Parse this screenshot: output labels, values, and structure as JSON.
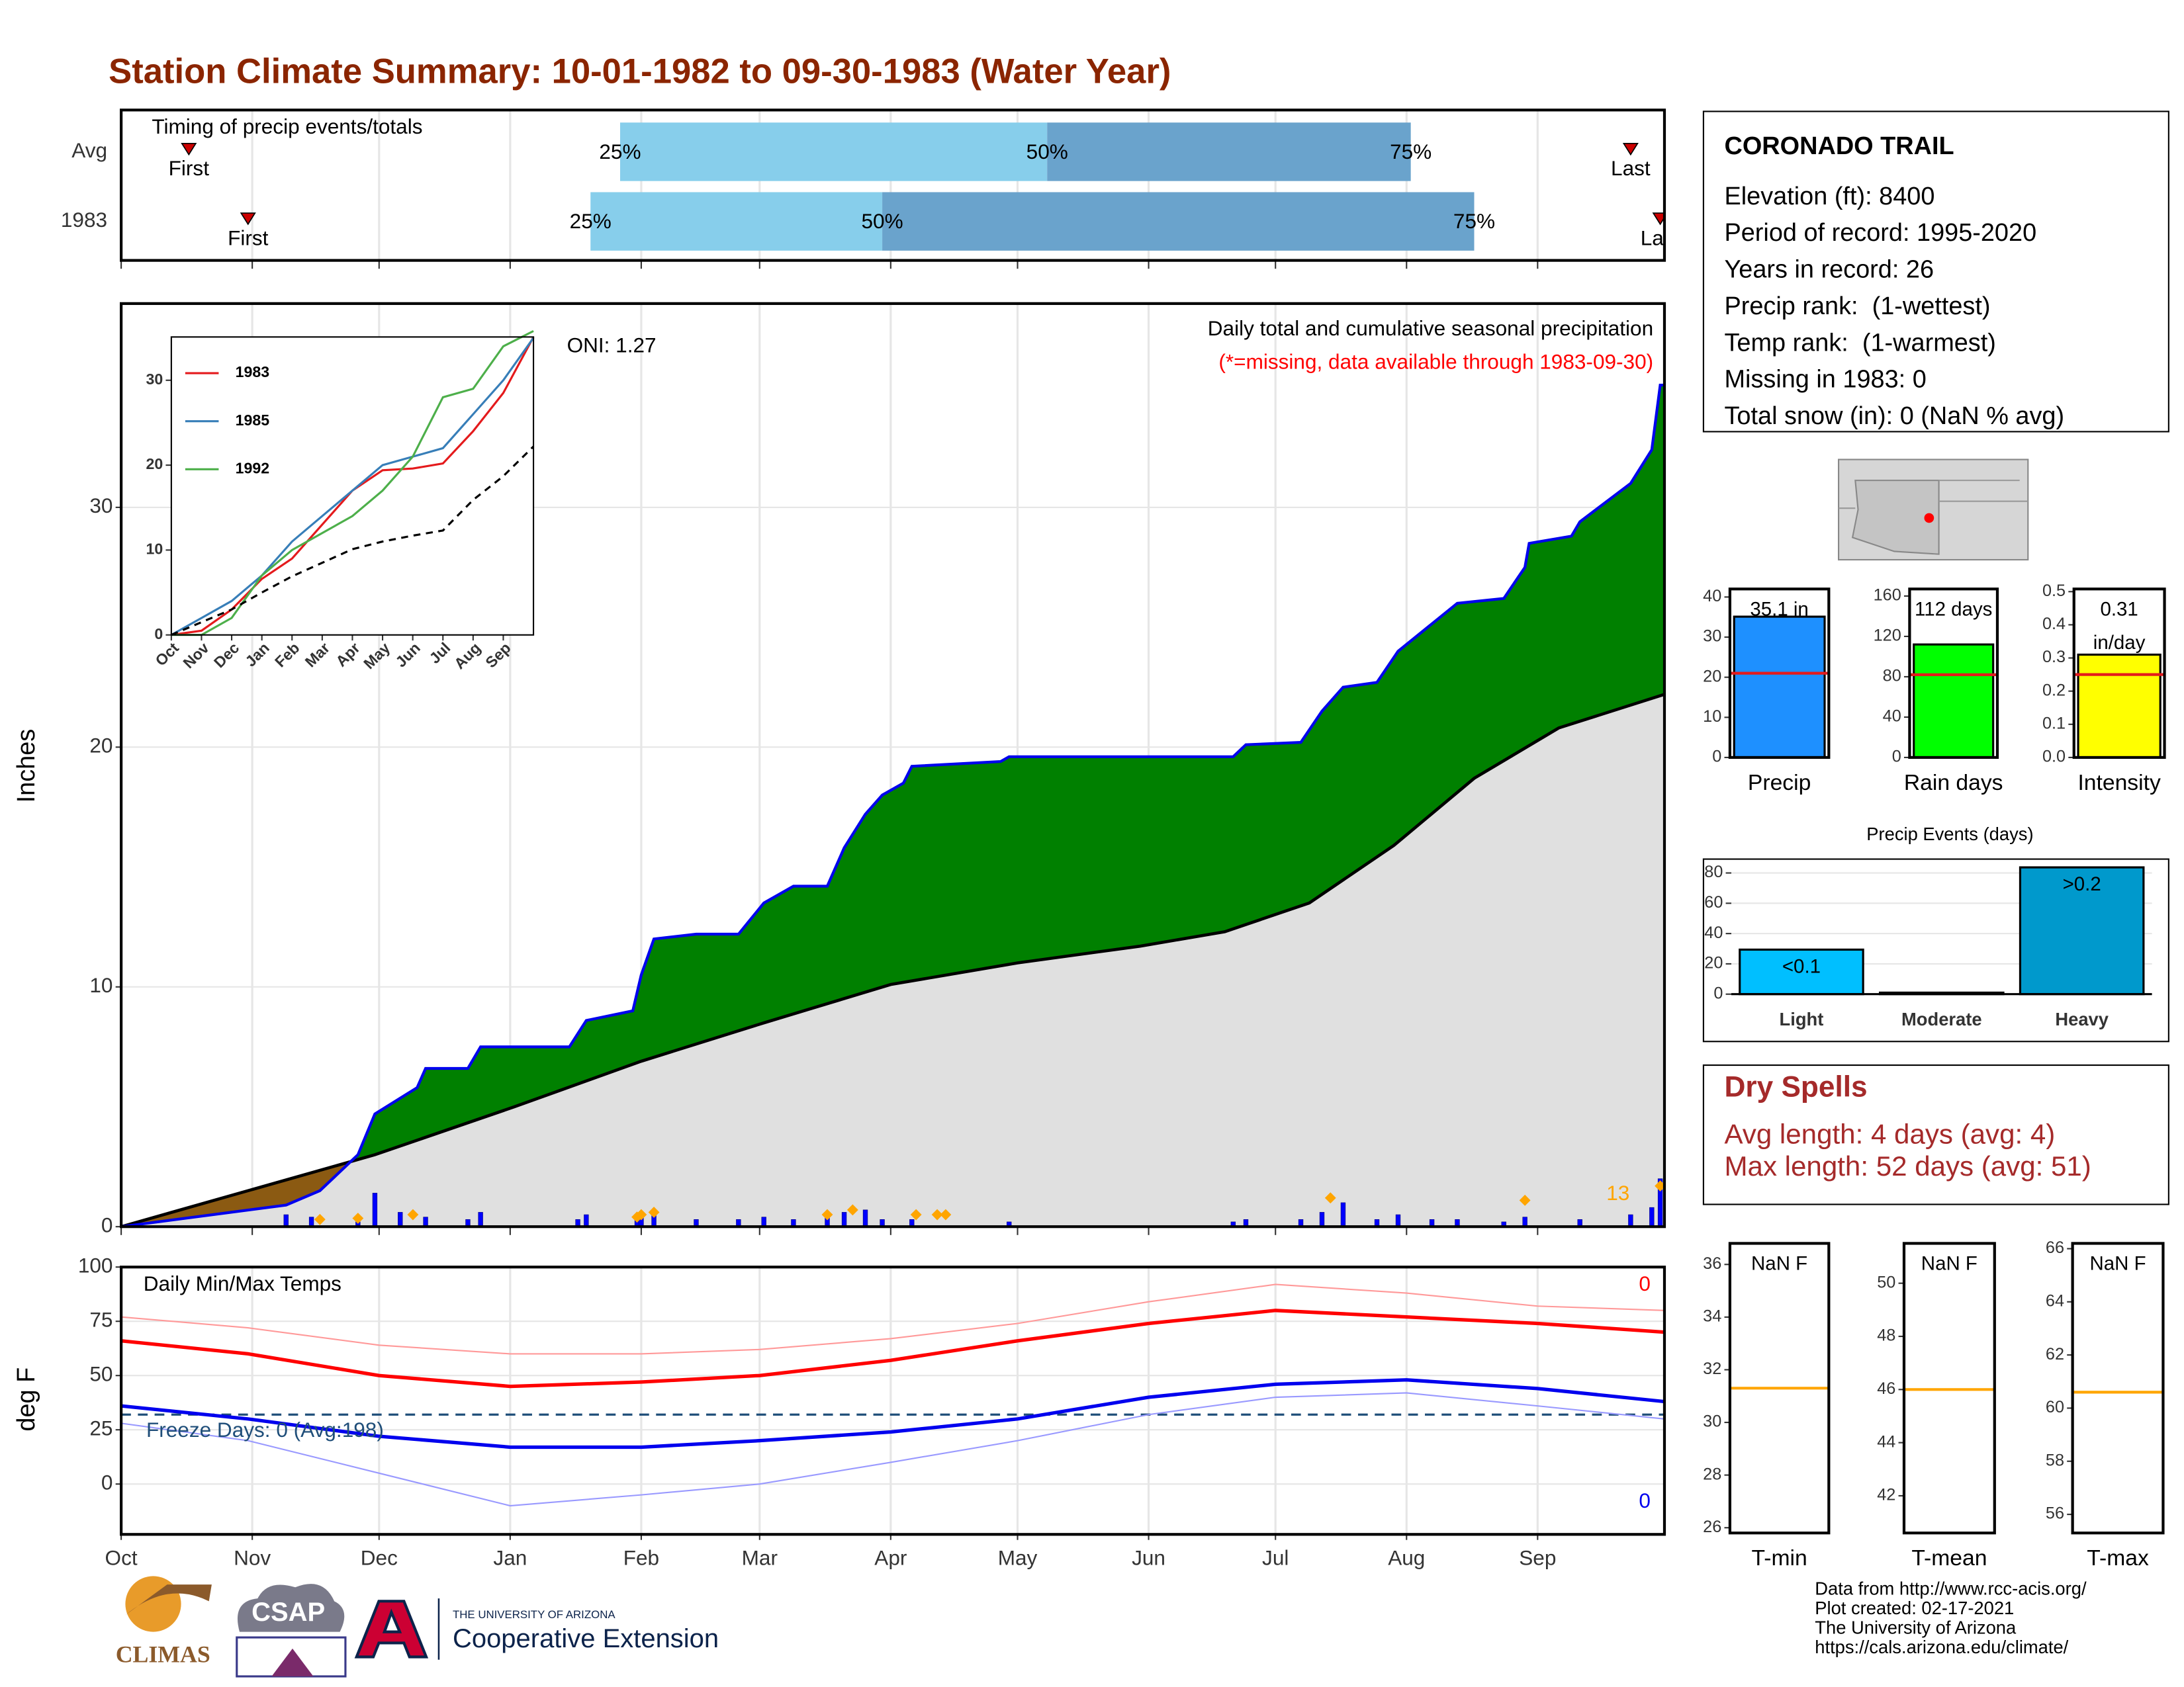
{
  "title": "Station Climate Summary: 10-01-1982 to 09-30-1983 (Water Year)",
  "station": {
    "name": "CORONADO TRAIL",
    "lines": [
      "Elevation (ft): 8400",
      "Period of record: 1995-2020",
      "Years in record: 26",
      "Precip rank:  (1-wettest)",
      "Temp rank:  (1-warmest)",
      "Missing in 1983: 0",
      "Total snow (in): 0 (NaN % avg)"
    ]
  },
  "dry_spells": {
    "title": "Dry Spells",
    "lines": [
      "Avg length: 4 days (avg: 4)",
      "Max length: 52 days (avg: 51)"
    ]
  },
  "logos": {
    "climas": "CLIMAS",
    "csap": "CSAP",
    "university": "THE UNIVERSITY OF ARIZONA",
    "extension": "Cooperative Extension"
  },
  "footer": [
    "Data from http://www.rcc-acis.org/",
    "Plot created: 02-17-2021",
    "The University of Arizona",
    "https://cals.arizona.edu/climate/"
  ],
  "chart_data": [
    {
      "type": "range_bar",
      "title": "Timing of precip events/totals",
      "categories": [
        "Avg",
        "1983"
      ],
      "first": [
        16,
        30
      ],
      "p25": [
        118,
        111
      ],
      "p50": [
        219,
        180
      ],
      "p75": [
        305,
        320
      ],
      "last": [
        357,
        364
      ],
      "labels": {
        "first": "First",
        "last": "Last",
        "p25": "25%",
        "p50": "50%",
        "p75": "75%"
      },
      "colors": [
        "#87ceeb",
        "#6aa3cc"
      ],
      "marker_color": "#cc0000",
      "xlim": [
        0,
        365
      ],
      "xticks": [
        0,
        31,
        61,
        92,
        123,
        151,
        182,
        212,
        243,
        273,
        304,
        335
      ],
      "grid": true
    },
    {
      "type": "area",
      "ylabel": "Inches",
      "oni": "ONI: 1.27",
      "subtitle": "Daily total and cumulative seasonal precipitation",
      "note": "(*=missing, data available through 1983-09-30)",
      "cumulative": {
        "color": "#0000ee",
        "x": [
          0,
          39,
          47,
          56,
          60,
          70,
          72,
          82,
          85,
          106,
          110,
          121,
          123,
          126,
          136,
          146,
          152,
          159,
          167,
          171,
          176,
          180,
          185,
          187,
          208,
          210,
          263,
          266,
          279,
          284,
          289,
          297,
          302,
          316,
          327,
          332,
          333,
          343,
          345,
          357,
          362,
          364,
          365
        ],
        "values": [
          0,
          0.9,
          1.5,
          3.0,
          4.7,
          5.8,
          6.6,
          6.6,
          7.5,
          7.5,
          8.6,
          9.0,
          10.5,
          12.0,
          12.2,
          12.2,
          13.5,
          14.2,
          14.2,
          15.8,
          17.2,
          18.0,
          18.5,
          19.2,
          19.4,
          19.6,
          19.6,
          20.1,
          20.2,
          21.5,
          22.5,
          22.7,
          24.0,
          26.0,
          26.2,
          27.5,
          28.5,
          28.8,
          29.4,
          31.0,
          32.4,
          35.1,
          35.1
        ]
      },
      "average": {
        "color": "#000000",
        "x": [
          0,
          60,
          93,
          123,
          152,
          182,
          212,
          241,
          261,
          281,
          301,
          320,
          340,
          365
        ],
        "values": [
          0,
          3.0,
          5.0,
          6.9,
          8.5,
          10.1,
          11.0,
          11.7,
          12.3,
          13.5,
          15.9,
          18.7,
          20.8,
          22.2
        ]
      },
      "daily": {
        "color": "#0000ff",
        "x": [
          39,
          45,
          56,
          60,
          66,
          72,
          82,
          85,
          108,
          110,
          122,
          123,
          126,
          136,
          146,
          152,
          159,
          167,
          171,
          176,
          180,
          187,
          210,
          263,
          266,
          279,
          284,
          289,
          297,
          302,
          310,
          316,
          327,
          332,
          345,
          357,
          362,
          364
        ],
        "values": [
          0.5,
          0.4,
          0.2,
          1.4,
          0.6,
          0.4,
          0.3,
          0.6,
          0.3,
          0.5,
          0.3,
          0.6,
          0.6,
          0.3,
          0.3,
          0.4,
          0.3,
          0.4,
          0.6,
          0.7,
          0.3,
          0.3,
          0.2,
          0.2,
          0.3,
          0.3,
          0.6,
          1.0,
          0.3,
          0.5,
          0.3,
          0.3,
          0.2,
          0.4,
          0.3,
          0.5,
          0.8,
          2.0
        ]
      },
      "events": {
        "color": "#ffa500",
        "x": [
          47,
          56,
          69,
          122,
          123,
          126,
          167,
          173,
          188,
          193,
          195,
          286,
          332,
          364
        ],
        "values": [
          0.3,
          0.35,
          0.5,
          0.4,
          0.5,
          0.6,
          0.5,
          0.7,
          0.5,
          0.5,
          0.5,
          1.2,
          1.1,
          1.7
        ]
      },
      "event_count": 13,
      "fill_above": "#008000",
      "fill_below": "#8b5a12",
      "fill_base": "#e0e0e0",
      "xlim": [
        0,
        365
      ],
      "xticks": [
        0,
        31,
        61,
        92,
        123,
        151,
        182,
        212,
        243,
        273,
        304,
        335
      ],
      "ylim": [
        0,
        38.5
      ],
      "yticks": [
        0,
        10,
        20,
        30
      ],
      "grid": true
    },
    {
      "type": "line",
      "x": [
        0,
        1,
        2,
        3,
        4,
        5,
        6,
        7,
        8,
        9,
        10,
        11,
        12
      ],
      "xlim": [
        0,
        12
      ],
      "xticks": [
        {
          "value": 0,
          "label": "Oct"
        },
        {
          "value": 1,
          "label": "Nov"
        },
        {
          "value": 2,
          "label": "Dec"
        },
        {
          "value": 3,
          "label": "Jan"
        },
        {
          "value": 4,
          "label": "Feb"
        },
        {
          "value": 5,
          "label": "Mar"
        },
        {
          "value": 6,
          "label": "Apr"
        },
        {
          "value": 7,
          "label": "May"
        },
        {
          "value": 8,
          "label": "Jun"
        },
        {
          "value": 9,
          "label": "Jul"
        },
        {
          "value": 10,
          "label": "Aug"
        },
        {
          "value": 11,
          "label": "Sep"
        }
      ],
      "ylim": [
        0,
        35.1
      ],
      "yticks": [
        0,
        10,
        20,
        30
      ],
      "grid": false,
      "legend": "top-left",
      "series": [
        {
          "name": "1983",
          "color": "#e41a1c",
          "values": [
            0,
            0.5,
            3,
            6.6,
            9,
            13,
            17,
            19.4,
            19.6,
            20.2,
            24,
            28.5,
            35.1
          ]
        },
        {
          "name": "1985",
          "color": "#377eb8",
          "values": [
            0,
            2,
            4,
            7,
            11,
            14,
            17,
            20,
            21,
            22,
            26,
            30,
            35
          ]
        },
        {
          "name": "1992",
          "color": "#4daf4a",
          "values": [
            0,
            0,
            2,
            7,
            10,
            12,
            14,
            17,
            21,
            28,
            29,
            34,
            35.8
          ]
        },
        {
          "color": "#000000",
          "dash": true,
          "values": [
            0,
            1.5,
            3,
            5,
            6.9,
            8.5,
            10.1,
            11,
            11.7,
            12.3,
            15.9,
            18.7,
            22.2
          ]
        }
      ]
    },
    {
      "type": "bar",
      "xlabel": "Precip",
      "values": [
        35.1
      ],
      "value_labels": [
        "35.1 in"
      ],
      "average": 21,
      "average_color": "#e41a1c",
      "color": "#1e90ff",
      "ylim": [
        0,
        42
      ],
      "yticks": [
        0,
        10,
        20,
        30,
        40
      ]
    },
    {
      "type": "bar",
      "xlabel": "Rain days",
      "values": [
        112
      ],
      "value_labels": [
        "112 days"
      ],
      "average": 82,
      "average_color": "#e41a1c",
      "color": "#00ff00",
      "ylim": [
        0,
        167
      ],
      "yticks": [
        0,
        40,
        80,
        120,
        160
      ]
    },
    {
      "type": "bar",
      "xlabel": "Intensity",
      "values": [
        0.31
      ],
      "value_labels": [
        "0.31 in/day"
      ],
      "average": 0.25,
      "average_color": "#e41a1c",
      "color": "#ffff00",
      "ylim": [
        0,
        0.508
      ],
      "yticks": [
        {
          "value": 0,
          "label": "0.0"
        },
        0.1,
        0.2,
        0.3,
        0.4,
        0.5
      ]
    },
    {
      "type": "bar",
      "title": "Precip Events (days)",
      "categories": [
        "Light",
        "Moderate",
        "Heavy"
      ],
      "values": [
        29.4,
        1,
        83.7
      ],
      "thresholds": [
        "<0.1",
        null,
        ">0.2"
      ],
      "colors": [
        "#00bfff",
        "#1e90ff",
        "#0099cc"
      ],
      "ylim": [
        0,
        86.4
      ],
      "yticks": [
        0,
        20,
        40,
        60,
        80
      ],
      "grid": true
    },
    {
      "type": "line",
      "title": "Daily Min/Max Temps",
      "ylabel": "deg F",
      "x": [
        0,
        30,
        61,
        92,
        123,
        151,
        182,
        212,
        243,
        273,
        304,
        335,
        365
      ],
      "xlim": [
        0,
        365
      ],
      "xticks": [
        {
          "value": 0,
          "label": "Oct"
        },
        {
          "value": 31,
          "label": "Nov"
        },
        {
          "value": 61,
          "label": "Dec"
        },
        {
          "value": 92,
          "label": "Jan"
        },
        {
          "value": 123,
          "label": "Feb"
        },
        {
          "value": 151,
          "label": "Mar"
        },
        {
          "value": 182,
          "label": "Apr"
        },
        {
          "value": 212,
          "label": "May"
        },
        {
          "value": 243,
          "label": "Jun"
        },
        {
          "value": 273,
          "label": "Jul"
        },
        {
          "value": 304,
          "label": "Aug"
        },
        {
          "value": 335,
          "label": "Sep"
        }
      ],
      "ylim": [
        -23.2,
        100
      ],
      "yticks": [
        0,
        25,
        50,
        75,
        100
      ],
      "grid": true,
      "freeze_line": 32,
      "freeze_label": "Freeze Days: 0 (Avg:198)",
      "max_count": 0,
      "min_count": 0,
      "series": [
        {
          "color": "#ff9999",
          "width": 1,
          "values": [
            77,
            72,
            64,
            60,
            60,
            62,
            67,
            74,
            84,
            92,
            88,
            82,
            80
          ]
        },
        {
          "color": "#ff0000",
          "width": 2.5,
          "values": [
            66,
            60,
            50,
            45,
            47,
            50,
            57,
            66,
            74,
            80,
            77,
            74,
            70
          ]
        },
        {
          "color": "#9999ff",
          "width": 1,
          "values": [
            28,
            20,
            5,
            -10,
            -5,
            0,
            10,
            20,
            32,
            40,
            42,
            36,
            30
          ]
        },
        {
          "color": "#0000ee",
          "width": 2.5,
          "values": [
            36,
            30,
            22,
            17,
            17,
            20,
            24,
            30,
            40,
            46,
            48,
            44,
            38
          ]
        }
      ]
    },
    {
      "type": "bar",
      "xlabel": "T-min",
      "values": [
        null
      ],
      "value_labels": [
        "NaN F"
      ],
      "average": 31.3,
      "average_color": "#ffa500",
      "ylim": [
        25.8,
        36.8
      ],
      "yticks": [
        26,
        28,
        30,
        32,
        34,
        36
      ]
    },
    {
      "type": "bar",
      "xlabel": "T-mean",
      "values": [
        null
      ],
      "value_labels": [
        "NaN F"
      ],
      "average": 46.0,
      "average_color": "#ffa500",
      "ylim": [
        40.6,
        51.5
      ],
      "yticks": [
        42,
        44,
        46,
        48,
        50
      ]
    },
    {
      "type": "bar",
      "xlabel": "T-max",
      "values": [
        null
      ],
      "value_labels": [
        "NaN F"
      ],
      "average": 60.6,
      "average_color": "#ffa500",
      "ylim": [
        55.3,
        66.2
      ],
      "yticks": [
        56,
        58,
        60,
        62,
        64,
        66
      ]
    }
  ]
}
